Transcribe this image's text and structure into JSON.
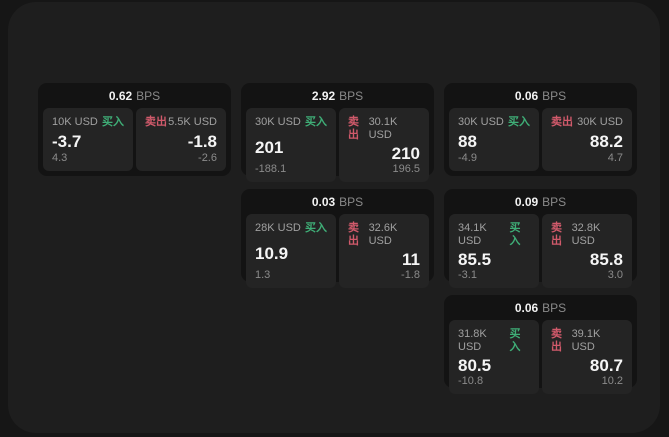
{
  "labels": {
    "buy": "买入",
    "sell": "卖出",
    "bps_unit": "BPS"
  },
  "colors": {
    "page_background": "#161616",
    "panel_background": "#1e1e1e",
    "card_background": "#131313",
    "tile_background": "#242424",
    "buy_green": "#3fae77",
    "sell_red": "#d15a6b",
    "value_white": "#f5f5f5",
    "muted_gray": "#9a9a9a"
  },
  "cards": [
    {
      "bps": "0.62",
      "buy": {
        "amount": "10K USD",
        "value": "-3.7",
        "delta": "4.3"
      },
      "sell": {
        "amount": "5.5K USD",
        "value": "-1.8",
        "delta": "-2.6"
      }
    },
    {
      "bps": "2.92",
      "buy": {
        "amount": "30K USD",
        "value": "201",
        "delta": "-188.1"
      },
      "sell": {
        "amount": "30.1K USD",
        "value": "210",
        "delta": "196.5"
      }
    },
    {
      "bps": "0.06",
      "buy": {
        "amount": "30K USD",
        "value": "88",
        "delta": "-4.9"
      },
      "sell": {
        "amount": "30K USD",
        "value": "88.2",
        "delta": "4.7"
      }
    },
    {
      "bps": "0.03",
      "buy": {
        "amount": "28K USD",
        "value": "10.9",
        "delta": "1.3"
      },
      "sell": {
        "amount": "32.6K USD",
        "value": "11",
        "delta": "-1.8"
      }
    },
    {
      "bps": "0.09",
      "buy": {
        "amount": "34.1K USD",
        "value": "85.5",
        "delta": "-3.1"
      },
      "sell": {
        "amount": "32.8K USD",
        "value": "85.8",
        "delta": "3.0"
      }
    },
    {
      "bps": "0.06",
      "buy": {
        "amount": "31.8K USD",
        "value": "80.5",
        "delta": "-10.8"
      },
      "sell": {
        "amount": "39.1K USD",
        "value": "80.7",
        "delta": "10.2"
      }
    }
  ]
}
